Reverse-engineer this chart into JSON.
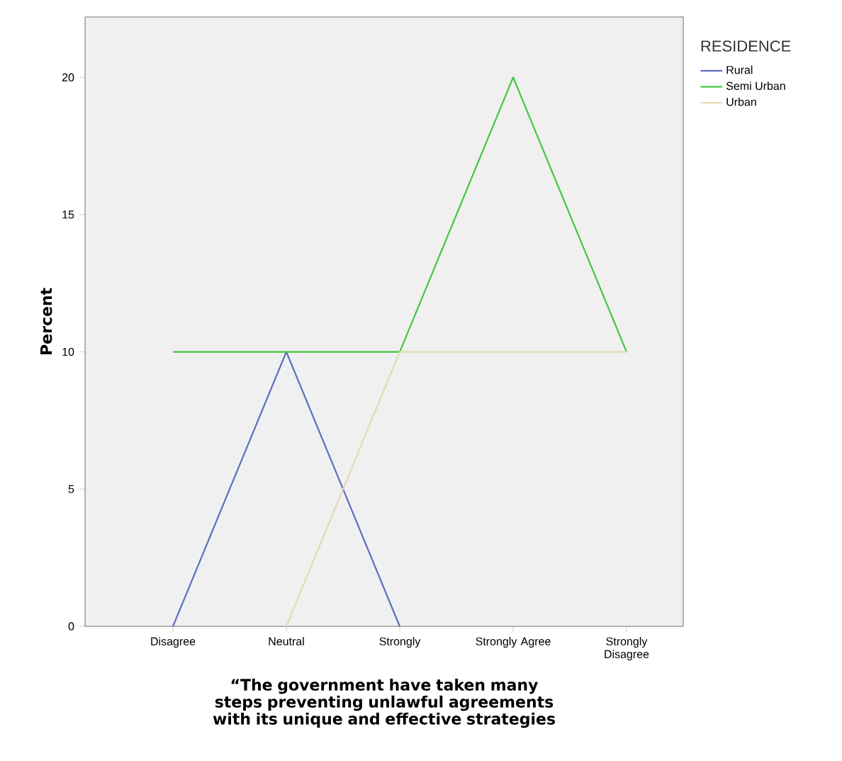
{
  "chart_data": {
    "type": "line",
    "xlabel": "“The government have taken many steps preventing unlawful agreements with its unique and effective strategies",
    "ylabel": "Percent",
    "legend_title": "RESIDENCE",
    "legend": "right",
    "categories": [
      "Disagree",
      "Neutral",
      "Strongly",
      "Strongly Agree",
      "Strongly Disagree"
    ],
    "series": [
      {
        "name": "Rural",
        "color": "#5b6fbf",
        "values": [
          0,
          10,
          0,
          null,
          null
        ]
      },
      {
        "name": "Semi Urban",
        "color": "#3ec83e",
        "values": [
          10,
          10,
          10,
          20,
          10
        ]
      },
      {
        "name": "Urban",
        "color": "#e2dab4",
        "values": [
          null,
          0,
          10,
          10,
          10
        ]
      }
    ],
    "ylim": [
      0,
      22.2
    ],
    "yticks": [
      0,
      5,
      10,
      15,
      20
    ],
    "grid": false,
    "marker": "none",
    "line_style": "solid"
  }
}
